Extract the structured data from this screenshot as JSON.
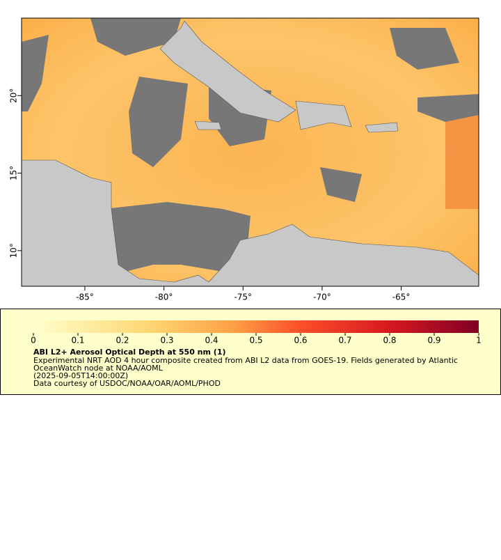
{
  "map": {
    "xlim": [
      -89.0,
      -60.1
    ],
    "ylim": [
      7.7,
      25.0
    ],
    "xticks": [
      {
        "value": -85,
        "label": "-85°"
      },
      {
        "value": -80,
        "label": "-80°"
      },
      {
        "value": -75,
        "label": "-75°"
      },
      {
        "value": -70,
        "label": "-70°"
      },
      {
        "value": -65,
        "label": "-65°"
      }
    ],
    "yticks": [
      {
        "value": 10,
        "label": "10°"
      },
      {
        "value": 15,
        "label": "15°"
      },
      {
        "value": 20,
        "label": "20°"
      }
    ]
  },
  "colorbar": {
    "lim": [
      0,
      1
    ],
    "ticks": [
      0,
      0.1,
      0.2,
      0.3,
      0.4,
      0.5,
      0.6,
      0.7,
      0.8,
      0.9,
      1
    ]
  },
  "legend": {
    "title": "ABI L2+ Aerosol Optical Depth at 550 nm (1)",
    "lines": [
      "Experimental NRT AOD 4 hour composite created from ABI L2 data from GOES-19. Fields generated by Atlantic",
      "OceanWatch node at NOAA/AOML",
      "(2025-09-05T14:00:00Z)",
      "Data courtesy of USDOC/NOAA/OAR/AOML/PHOD"
    ]
  }
}
